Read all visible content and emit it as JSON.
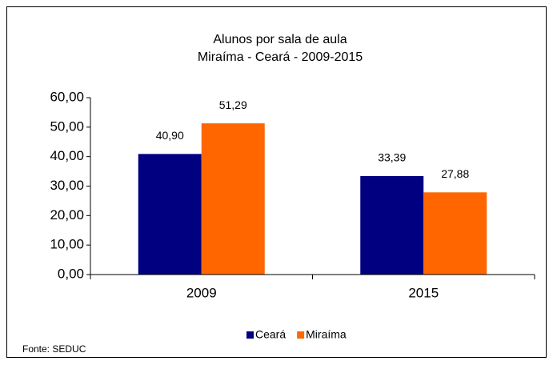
{
  "chart_data": {
    "type": "bar",
    "title": "Alunos por sala de aula",
    "subtitle": "Miraíma - Ceará - 2009-2015",
    "categories": [
      "2009",
      "2015"
    ],
    "series": [
      {
        "name": "Ceará",
        "color": "#000080",
        "values": [
          40.9,
          33.39
        ],
        "value_labels": [
          "40,90",
          "33,39"
        ]
      },
      {
        "name": "Miraíma",
        "color": "#ff6600",
        "values": [
          51.29,
          27.88
        ],
        "value_labels": [
          "51,29",
          "27,88"
        ]
      }
    ],
    "ylim": [
      0,
      60
    ],
    "yticks": [
      {
        "value": 0,
        "label": "0,00"
      },
      {
        "value": 10,
        "label": "10,00"
      },
      {
        "value": 20,
        "label": "20,00"
      },
      {
        "value": 30,
        "label": "30,00"
      },
      {
        "value": 40,
        "label": "40,00"
      },
      {
        "value": 50,
        "label": "50,00"
      },
      {
        "value": 60,
        "label": "60,00"
      }
    ],
    "legend": "bottom",
    "source": "Fonte: SEDUC"
  }
}
